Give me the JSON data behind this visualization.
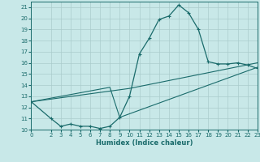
{
  "xlabel": "Humidex (Indice chaleur)",
  "bg_color": "#c8e8e8",
  "line_color": "#1a6b6b",
  "grid_color": "#aacccc",
  "xlim": [
    0,
    23
  ],
  "ylim": [
    10,
    21.5
  ],
  "xticks": [
    0,
    2,
    3,
    4,
    5,
    6,
    7,
    8,
    9,
    10,
    11,
    12,
    13,
    14,
    15,
    16,
    17,
    18,
    19,
    20,
    21,
    22,
    23
  ],
  "yticks": [
    10,
    11,
    12,
    13,
    14,
    15,
    16,
    17,
    18,
    19,
    20,
    21
  ],
  "series1_x": [
    0,
    2,
    3,
    4,
    5,
    6,
    7,
    8,
    9,
    10,
    11,
    12,
    13,
    14,
    15,
    16,
    17,
    18,
    19,
    20,
    21,
    22,
    23
  ],
  "series1_y": [
    12.5,
    11.0,
    10.3,
    10.5,
    10.3,
    10.3,
    10.1,
    10.3,
    11.1,
    13.0,
    16.8,
    18.2,
    19.9,
    20.2,
    21.2,
    20.5,
    19.0,
    16.1,
    15.9,
    15.9,
    16.0,
    15.8,
    15.5
  ],
  "series2_x": [
    0,
    10,
    23
  ],
  "series2_y": [
    12.5,
    13.7,
    16.0
  ],
  "series3_x": [
    0,
    8,
    9,
    23
  ],
  "series3_y": [
    12.5,
    13.8,
    11.1,
    15.6
  ],
  "xlabel_fontsize": 6,
  "tick_fontsize": 5
}
